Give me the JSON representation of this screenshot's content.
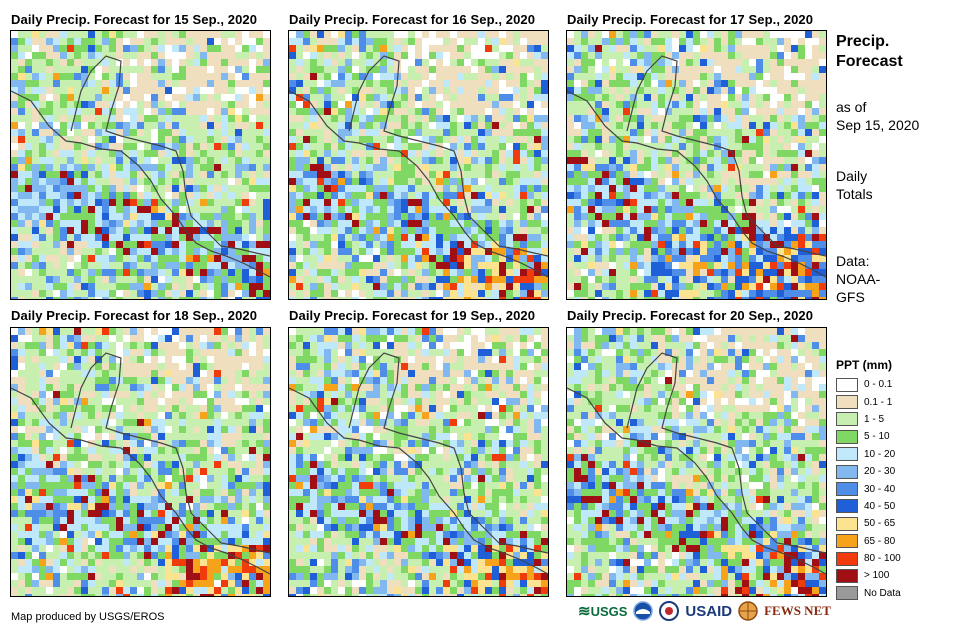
{
  "panels": [
    {
      "title": "Daily Precip. Forecast for 15 Sep., 2020"
    },
    {
      "title": "Daily Precip. Forecast for 16 Sep., 2020"
    },
    {
      "title": "Daily Precip. Forecast for 17 Sep., 2020"
    },
    {
      "title": "Daily Precip. Forecast for 18 Sep., 2020"
    },
    {
      "title": "Daily Precip. Forecast for 19 Sep., 2020"
    },
    {
      "title": "Daily Precip. Forecast for 20 Sep., 2020"
    }
  ],
  "side": {
    "title_line1": "Precip.",
    "title_line2": "Forecast",
    "asof_line1": "as of",
    "asof_line2": "Sep 15, 2020",
    "totals_line1": "Daily",
    "totals_line2": "Totals",
    "data_line1": "Data:",
    "data_line2": "NOAA-",
    "data_line3": "GFS"
  },
  "legend": {
    "title": "PPT (mm)",
    "items": [
      {
        "label": "0 - 0.1",
        "color": "#ffffff"
      },
      {
        "label": "0.1 - 1",
        "color": "#efdfbf"
      },
      {
        "label": "1 - 5",
        "color": "#c6efb0"
      },
      {
        "label": "5 - 10",
        "color": "#7ed863"
      },
      {
        "label": "10 - 20",
        "color": "#bfe8fb"
      },
      {
        "label": "20 - 30",
        "color": "#82b8f0"
      },
      {
        "label": "30 - 40",
        "color": "#4f8ee8"
      },
      {
        "label": "40 - 50",
        "color": "#1f5fd8"
      },
      {
        "label": "50 - 65",
        "color": "#fbe38f"
      },
      {
        "label": "65 - 80",
        "color": "#f6a21a"
      },
      {
        "label": "80 - 100",
        "color": "#f03c0c"
      },
      {
        "label": "> 100",
        "color": "#a00f14"
      },
      {
        "label": "No Data",
        "color": "#9a9a9a"
      }
    ]
  },
  "footer": {
    "credit": "Map produced by USGS/EROS",
    "logo_usgs": "USGS",
    "logo_usaid": "USAID",
    "logo_fews": "FEWS NET"
  }
}
